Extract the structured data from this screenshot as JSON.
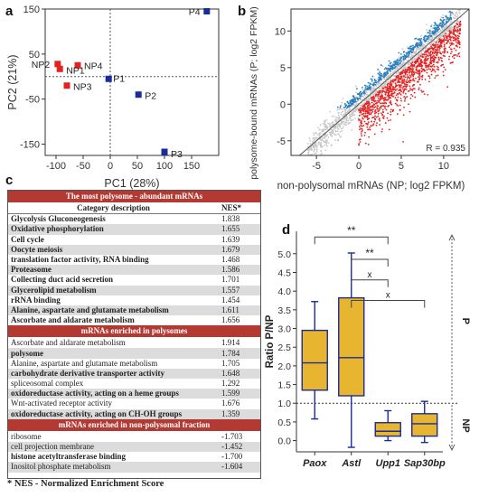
{
  "panels": {
    "a": "a",
    "b": "b",
    "c": "c",
    "d": "d"
  },
  "chart_data": [
    {
      "type": "scatter",
      "panel": "a",
      "xlabel": "PC1 (28%)",
      "ylabel": "PC2 (21%)",
      "xlim": [
        -120,
        200
      ],
      "ylim": [
        -175,
        150
      ],
      "xticks": [
        -100,
        -50,
        0,
        50,
        100,
        150
      ],
      "yticks": [
        150,
        50,
        -50,
        -150
      ],
      "series": [
        {
          "group": "NP",
          "color": "#e52222",
          "points": [
            {
              "label": "NP2",
              "x": -97,
              "y": 28
            },
            {
              "label": "NP4",
              "x": -60,
              "y": 25
            },
            {
              "label": "NP1",
              "x": -93,
              "y": 17
            },
            {
              "label": "NP3",
              "x": -80,
              "y": -20
            }
          ]
        },
        {
          "group": "P",
          "color": "#1a2b9a",
          "points": [
            {
              "label": "P4",
              "x": 178,
              "y": 145
            },
            {
              "label": "P1",
              "x": -3,
              "y": -5
            },
            {
              "label": "P2",
              "x": 52,
              "y": -40
            },
            {
              "label": "P3",
              "x": 100,
              "y": -167
            }
          ]
        }
      ]
    },
    {
      "type": "scatter",
      "panel": "b",
      "xlabel": "non-polysomal mRNAs (NP; log2 FPKM)",
      "ylabel": "polysome-bound mRNAs (P; log2 FPKM)",
      "xlim": [
        -8,
        13
      ],
      "ylim": [
        -7,
        13
      ],
      "xticks": [
        -5,
        0,
        5,
        10
      ],
      "yticks": [
        10,
        5,
        0,
        -5
      ],
      "annotation": "R = 0.935",
      "colors": {
        "neutral": "#c8c8c8",
        "up": "#2a7fbf",
        "down": "#e52222",
        "diagonal": "#555555"
      }
    },
    {
      "type": "box",
      "panel": "d",
      "ylabel": "Ratio P/NP",
      "categories": [
        "Paox",
        "Astl",
        "Upp1",
        "Sap30bp"
      ],
      "ylim": [
        -0.3,
        5.6
      ],
      "yticks": [
        0,
        0.5,
        1,
        1.5,
        2,
        2.5,
        3,
        3.5,
        4,
        4.5,
        5
      ],
      "reference_line": 1.0,
      "boxes": [
        {
          "category": "Paox",
          "min": 0.58,
          "q1": 1.35,
          "median": 2.08,
          "q3": 2.95,
          "max": 3.72
        },
        {
          "category": "Astl",
          "min": -0.18,
          "q1": 1.2,
          "median": 2.22,
          "q3": 3.82,
          "max": 5.02
        },
        {
          "category": "Upp1",
          "min": 0.0,
          "q1": 0.12,
          "median": 0.25,
          "q3": 0.48,
          "max": 0.8
        },
        {
          "category": "Sap30bp",
          "min": -0.05,
          "q1": 0.12,
          "median": 0.45,
          "q3": 0.72,
          "max": 1.05
        }
      ],
      "brackets": [
        {
          "from": 0,
          "to": 2,
          "label": "**",
          "level": 5.45
        },
        {
          "from": 1,
          "to": 2,
          "label": "**",
          "level": 4.85
        },
        {
          "from": 1,
          "to": 2,
          "label": "x",
          "level": 4.3
        },
        {
          "from": 1,
          "to": 3,
          "label": "x",
          "level": 3.75
        }
      ],
      "side_labels": {
        "top": "P",
        "bottom": "NP"
      },
      "box_color": "#e8b530"
    }
  ],
  "table": {
    "header": {
      "category": "Category description",
      "nes": "NES*"
    },
    "sections": [
      {
        "title": "The most polysome - abundant mRNAs",
        "rows": [
          {
            "category": "Glycolysis Gluconeogenesis",
            "nes": "1.838",
            "bold": true
          },
          {
            "category": "Oxidative phosphorylation",
            "nes": "1.655",
            "bold": true
          },
          {
            "category": "Cell cycle",
            "nes": "1.639",
            "bold": true
          },
          {
            "category": "Oocyte meiosis",
            "nes": "1.679",
            "bold": true
          },
          {
            "category": "translation factor activity, RNA binding",
            "nes": "1.468",
            "bold": true
          },
          {
            "category": "Proteasome",
            "nes": "1.586",
            "bold": true
          },
          {
            "category": "Collecting duct acid secretion",
            "nes": "1.701",
            "bold": true
          },
          {
            "category": "Glycerolipid metabolism",
            "nes": "1.557",
            "bold": true
          },
          {
            "category": "rRNA binding",
            "nes": "1.454",
            "bold": true
          },
          {
            "category": "Alanine, aspartate and glutamate metabolism",
            "nes": "1.611",
            "bold": true
          },
          {
            "category": "Ascorbate and aldarate metabolism",
            "nes": "1.656",
            "bold": true
          }
        ]
      },
      {
        "title": "mRNAs enriched in polysomes",
        "rows": [
          {
            "category": "Ascorbate and aldarate metabolism",
            "nes": "1.914",
            "bold": false
          },
          {
            "category": "polysome",
            "nes": "1.784",
            "bold": true
          },
          {
            "category": "Alanine, aspartate and glutamate metabolism",
            "nes": "1.705",
            "bold": false
          },
          {
            "category": "carbohydrate derivative transporter activity",
            "nes": "1.648",
            "bold": true
          },
          {
            "category": "spliceosomal complex",
            "nes": "1.292",
            "bold": false
          },
          {
            "category": "oxidoreductase activity, acting on a heme groups",
            "nes": "1.599",
            "bold": true
          },
          {
            "category": "Wnt-activated receptor activity",
            "nes": "1.676",
            "bold": false
          },
          {
            "category": "oxidoreductase activity, acting on CH-OH groups",
            "nes": "1.359",
            "bold": true
          }
        ]
      },
      {
        "title": "mRNAs enriched  in non-polysomal fraction",
        "rows": [
          {
            "category": "ribosome",
            "nes": "-1.703",
            "bold": false
          },
          {
            "category": "cell projection membrane",
            "nes": "-1.452",
            "bold": false
          },
          {
            "category": "histone acetyltransferase binding",
            "nes": "-1.700",
            "bold": true
          },
          {
            "category": "Inositol phosphate metabolism",
            "nes": "-1.604",
            "bold": false
          }
        ]
      }
    ]
  },
  "footnote": "* NES - Normalized Enrichment Score"
}
